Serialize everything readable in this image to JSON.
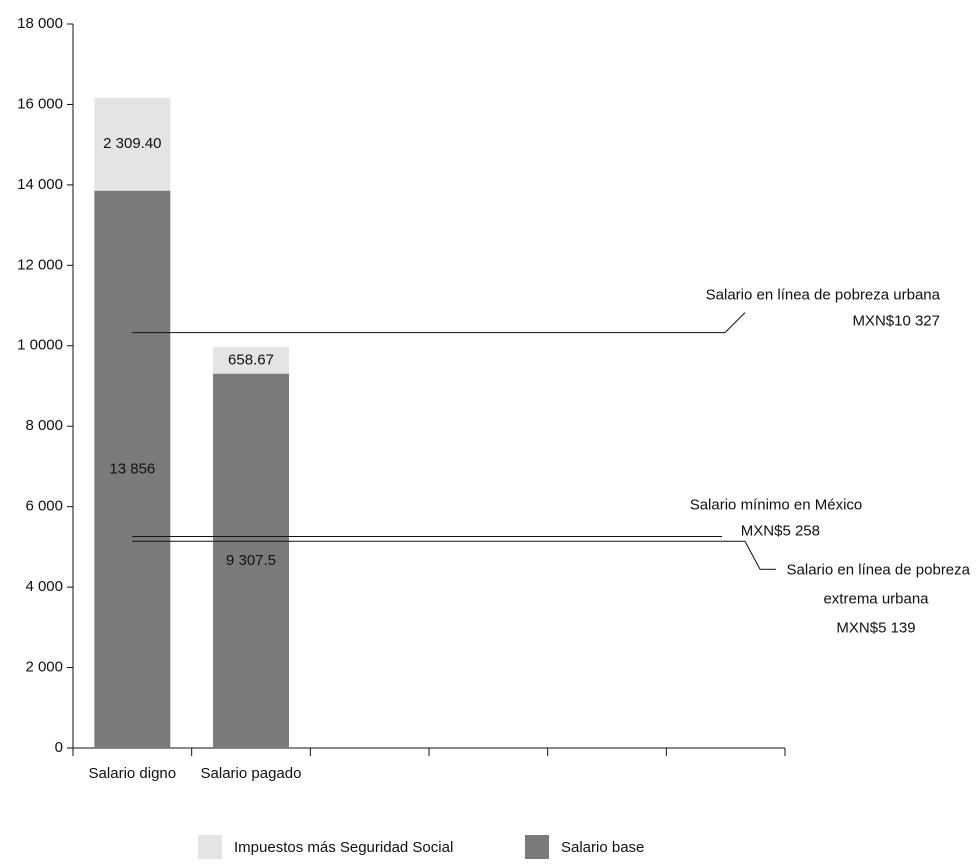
{
  "chart_data": {
    "type": "stacked_bar",
    "categories": [
      "Salario digno",
      "Salario pagado",
      null,
      null,
      null,
      null
    ],
    "series": [
      {
        "name": "Salario base",
        "color": "#7a7a7a",
        "values": [
          13856,
          9307.5,
          null,
          null,
          null,
          null
        ],
        "value_labels": [
          "13 856",
          "9 307.5",
          null,
          null,
          null,
          null
        ]
      },
      {
        "name": "Impuestos más Seguridad Social",
        "color": "#e4e4e4",
        "values": [
          2309.4,
          658.67,
          null,
          null,
          null,
          null
        ],
        "value_labels": [
          "2 309.40",
          "658.67",
          null,
          null,
          null,
          null
        ]
      }
    ],
    "ylim": [
      0,
      18000
    ],
    "yticks": [
      0,
      {
        "value": 2000,
        "label": "2 000"
      },
      {
        "value": 4000,
        "label": "4 000"
      },
      {
        "value": 6000,
        "label": "6 000"
      },
      {
        "value": 8000,
        "label": "8 000"
      },
      {
        "value": 10000,
        "label": "1 0000"
      },
      {
        "value": 12000,
        "label": "12 000"
      },
      {
        "value": 14000,
        "label": "14 000"
      },
      {
        "value": 16000,
        "label": "16 000"
      },
      {
        "value": 18000,
        "label": "18 000"
      }
    ],
    "reference_lines": [
      {
        "value": 10327,
        "label_lines": [
          "Salario en línea de pobreza urbana",
          "MXN$10 327"
        ]
      },
      {
        "value": 5258,
        "label_lines": [
          "Salario mínimo en México",
          "MXN$5 258"
        ]
      },
      {
        "value": 5139,
        "label_lines": [
          "Salario en línea de pobreza",
          "extrema urbana",
          "MXN$5 139"
        ]
      }
    ]
  }
}
